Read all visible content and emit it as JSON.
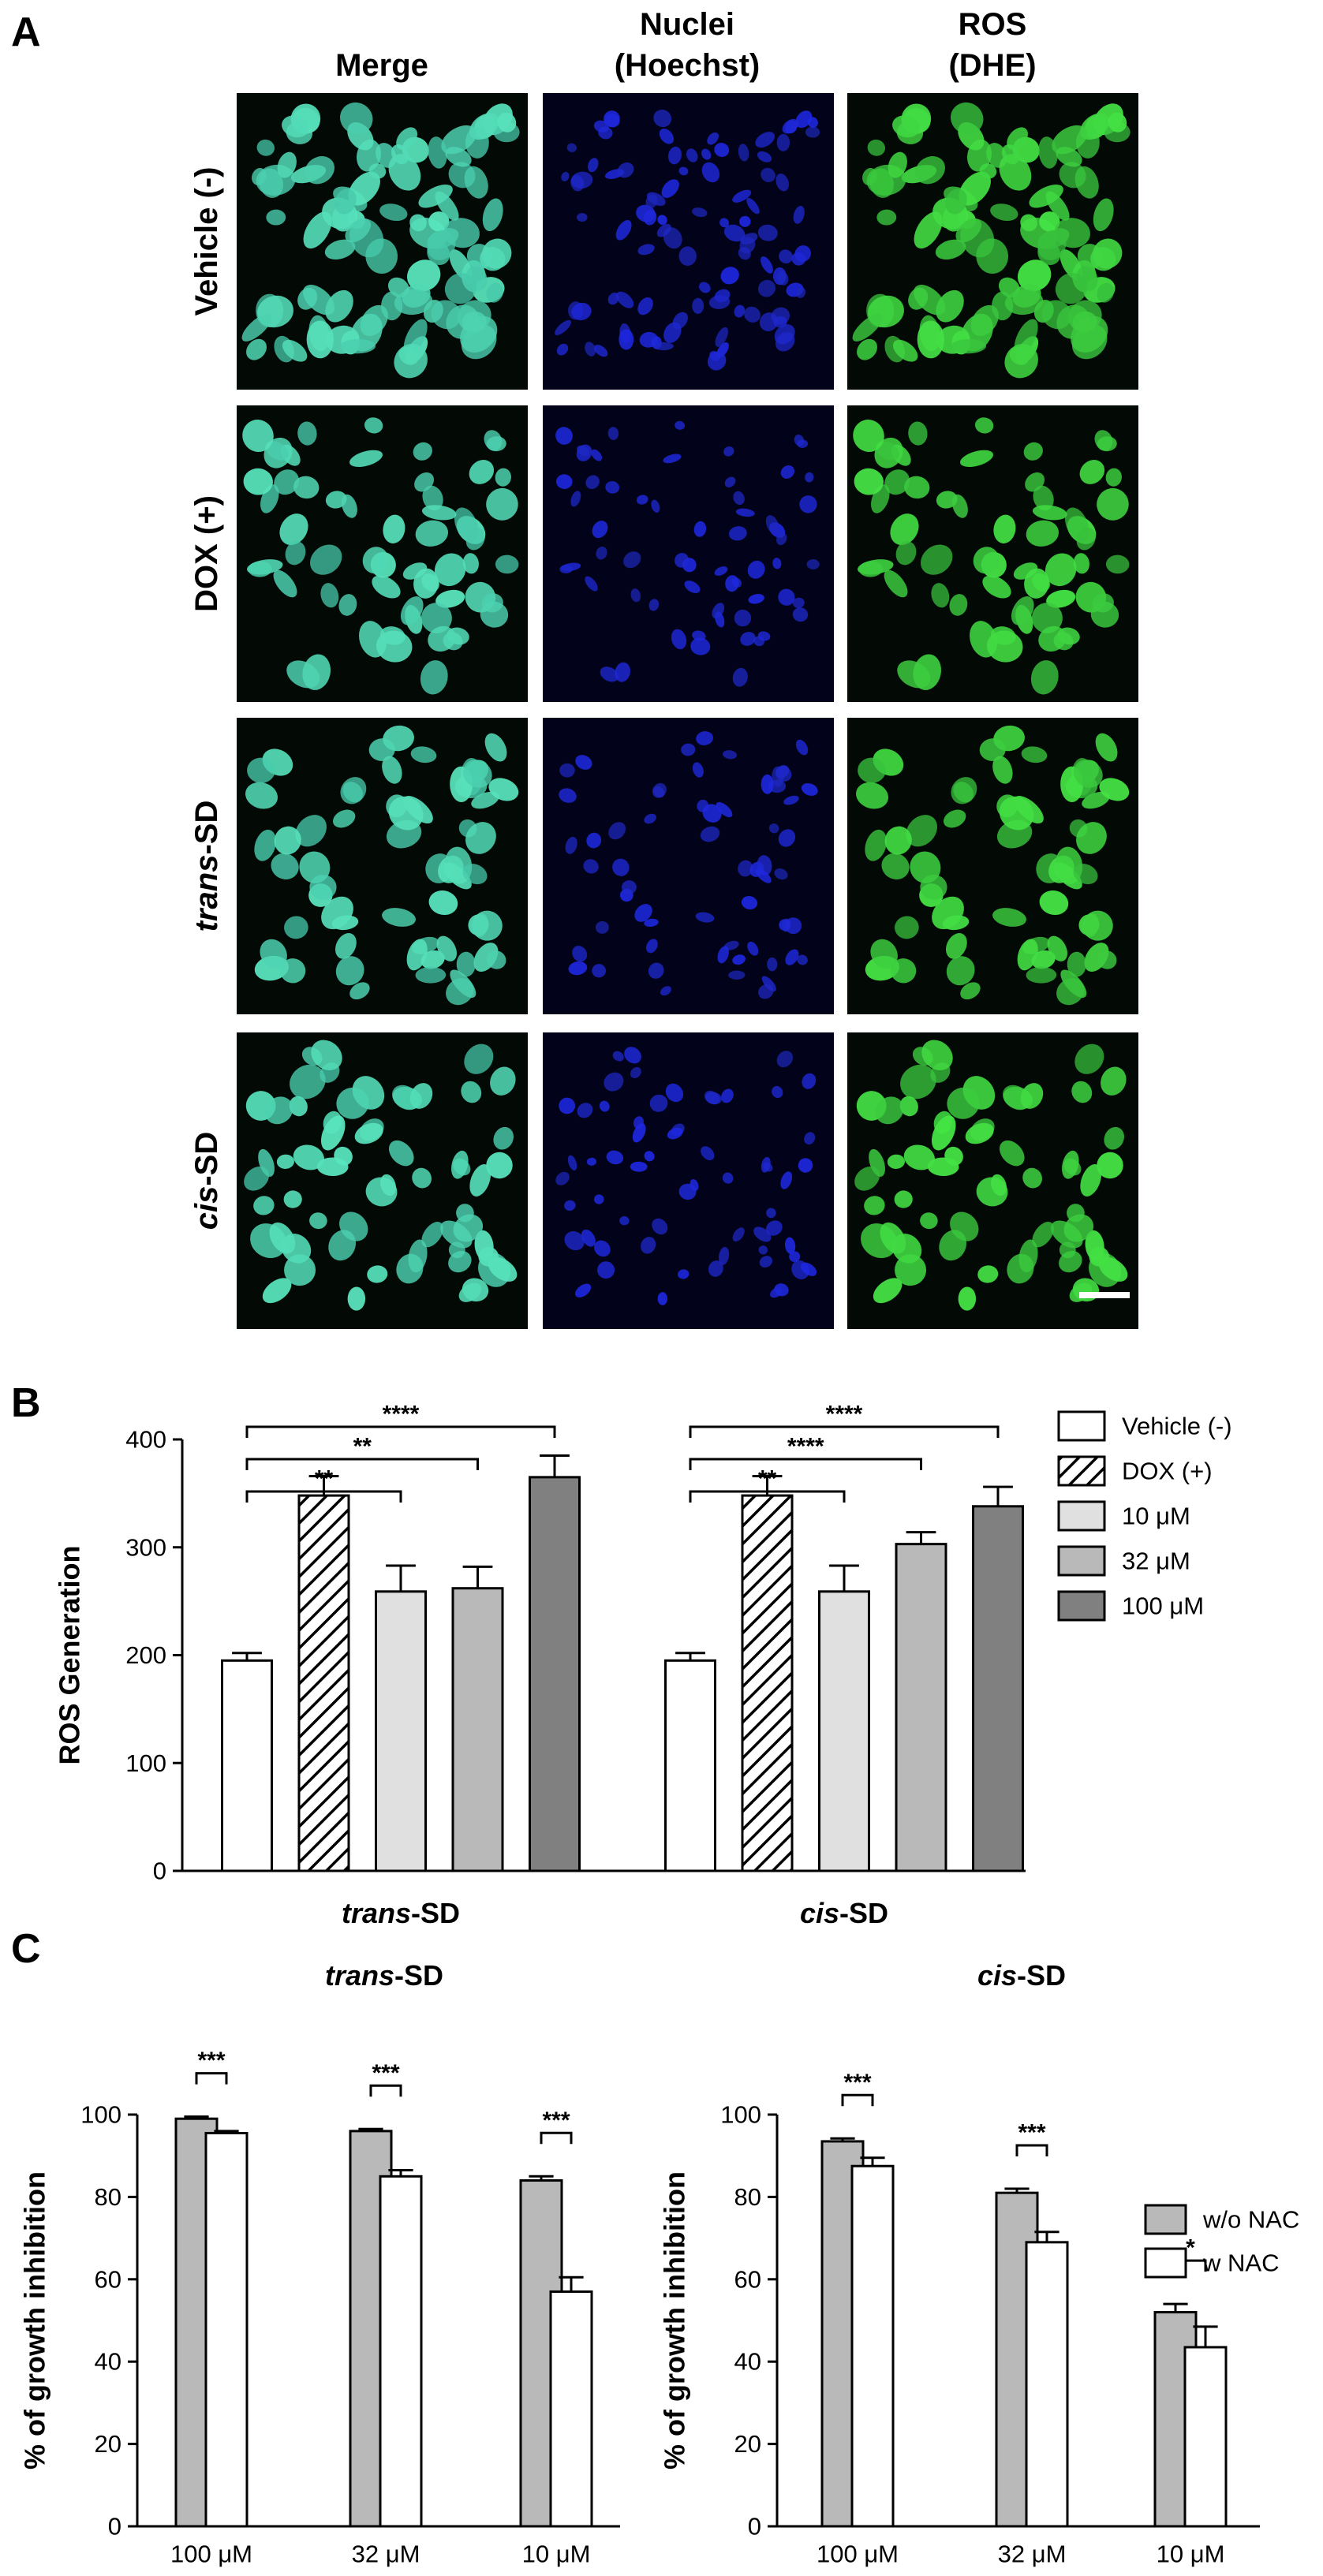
{
  "panel_labels": [
    "A",
    "B",
    "C"
  ],
  "panel_a": {
    "column_headers": [
      [
        "Merge"
      ],
      [
        "Nuclei",
        "(Hoechst)"
      ],
      [
        "ROS",
        "(DHE)"
      ]
    ],
    "row_labels": [
      "Vehicle (-)",
      "DOX (+)",
      "trans-SD",
      "cis-SD"
    ]
  },
  "chart_data": [
    {
      "type": "bar",
      "ylabel": "ROS Generation",
      "categories": [
        "trans-SD",
        "cis-SD"
      ],
      "series": [
        {
          "name": "Vehicle (-)",
          "color": "#ffffff",
          "values": [
            195,
            195
          ],
          "errors": [
            7,
            7
          ]
        },
        {
          "name": "DOX (+)",
          "color": "#ffffff",
          "pattern": "hatch",
          "values": [
            348,
            348
          ],
          "errors": [
            18,
            18
          ]
        },
        {
          "name": "10 μM",
          "color": "#e0e0e0",
          "values": [
            259,
            259
          ],
          "errors": [
            24,
            24
          ]
        },
        {
          "name": "32 μM",
          "color": "#b9b9b9",
          "values": [
            262,
            303
          ],
          "errors": [
            20,
            11
          ]
        },
        {
          "name": "100 μM",
          "color": "#808080",
          "values": [
            365,
            338
          ],
          "errors": [
            20,
            18
          ]
        }
      ],
      "ylim": [
        0,
        400
      ],
      "yticks": [
        0,
        100,
        200,
        300,
        400
      ],
      "legend": "right",
      "annotations": [
        {
          "category": "trans-SD",
          "from": "Vehicle (-)",
          "to": "10 μM",
          "label": "**"
        },
        {
          "category": "trans-SD",
          "from": "Vehicle (-)",
          "to": "32 μM",
          "label": "**"
        },
        {
          "category": "trans-SD",
          "from": "Vehicle (-)",
          "to": "100 μM",
          "label": "****"
        },
        {
          "category": "cis-SD",
          "from": "Vehicle (-)",
          "to": "10 μM",
          "label": "**"
        },
        {
          "category": "cis-SD",
          "from": "Vehicle (-)",
          "to": "32 μM",
          "label": "****"
        },
        {
          "category": "cis-SD",
          "from": "Vehicle (-)",
          "to": "100 μM",
          "label": "****"
        }
      ]
    },
    {
      "type": "bar",
      "title": "trans-SD",
      "ylabel": "% of growth inhibition",
      "categories": [
        "100 μM",
        "32 μM",
        "10 μM"
      ],
      "series": [
        {
          "name": "w/o NAC",
          "color": "#b9b9b9",
          "values": [
            99,
            96,
            84
          ],
          "errors": [
            0.5,
            0.5,
            1
          ]
        },
        {
          "name": "w NAC",
          "color": "#ffffff",
          "values": [
            95.5,
            85,
            57
          ],
          "errors": [
            0.5,
            1.5,
            3.5
          ]
        }
      ],
      "ylim": [
        0,
        100
      ],
      "yticks": [
        0,
        20,
        40,
        60,
        80,
        100
      ],
      "annotations": [
        {
          "category": "100 μM",
          "from": "w/o NAC",
          "to": "w NAC",
          "label": "***"
        },
        {
          "category": "32 μM",
          "from": "w/o NAC",
          "to": "w NAC",
          "label": "***"
        },
        {
          "category": "10 μM",
          "from": "w/o NAC",
          "to": "w NAC",
          "label": "***"
        }
      ]
    },
    {
      "type": "bar",
      "title": "cis-SD",
      "ylabel": "% of growth inhibition",
      "categories": [
        "100 μM",
        "32 μM",
        "10 μM"
      ],
      "series": [
        {
          "name": "w/o NAC",
          "color": "#b9b9b9",
          "values": [
            93.5,
            81,
            52
          ],
          "errors": [
            0.7,
            1,
            2
          ]
        },
        {
          "name": "w NAC",
          "color": "#ffffff",
          "values": [
            87.5,
            69,
            43.5
          ],
          "errors": [
            2,
            2.5,
            5
          ]
        }
      ],
      "ylim": [
        0,
        100
      ],
      "yticks": [
        0,
        20,
        40,
        60,
        80,
        100
      ],
      "legend": "top-right",
      "annotations": [
        {
          "category": "100 μM",
          "from": "w/o NAC",
          "to": "w NAC",
          "label": "***"
        },
        {
          "category": "32 μM",
          "from": "w/o NAC",
          "to": "w NAC",
          "label": "***"
        },
        {
          "category": "10 μM",
          "from": "w/o NAC",
          "to": "w NAC",
          "label": "*"
        }
      ]
    }
  ]
}
